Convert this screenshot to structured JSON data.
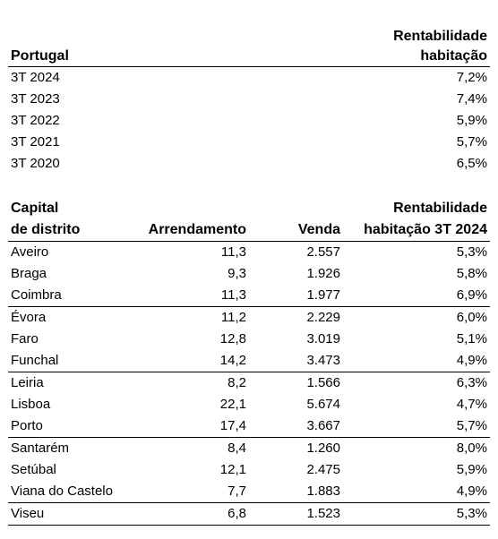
{
  "portugal": {
    "header_left": "Portugal",
    "header_right_line1": "Rentabilidade",
    "header_right_line2": "habitação",
    "rows": [
      {
        "period": "3T 2024",
        "value": "7,2%"
      },
      {
        "period": "3T 2023",
        "value": "7,4%"
      },
      {
        "period": "3T 2022",
        "value": "5,9%"
      },
      {
        "period": "3T 2021",
        "value": "5,7%"
      },
      {
        "period": "3T 2020",
        "value": "6,5%"
      }
    ]
  },
  "capitals": {
    "col1_line1": "Capital",
    "col1_line2": "de distrito",
    "col2": "Arrendamento",
    "col3": "Venda",
    "col4_line1": "Rentabilidade",
    "col4_line2": "habitação 3T 2024",
    "rows": [
      {
        "name": "Aveiro",
        "rent": "11,3",
        "sale": "2.557",
        "yield": "5,3%"
      },
      {
        "name": "Braga",
        "rent": "9,3",
        "sale": "1.926",
        "yield": "5,8%"
      },
      {
        "name": "Coimbra",
        "rent": "11,3",
        "sale": "1.977",
        "yield": "6,9%"
      },
      {
        "name": "Évora",
        "rent": "11,2",
        "sale": "2.229",
        "yield": "6,0%"
      },
      {
        "name": "Faro",
        "rent": "12,8",
        "sale": "3.019",
        "yield": "5,1%"
      },
      {
        "name": "Funchal",
        "rent": "14,2",
        "sale": "3.473",
        "yield": "4,9%"
      },
      {
        "name": "Leiria",
        "rent": "8,2",
        "sale": "1.566",
        "yield": "6,3%"
      },
      {
        "name": "Lisboa",
        "rent": "22,1",
        "sale": "5.674",
        "yield": "4,7%"
      },
      {
        "name": "Porto",
        "rent": "17,4",
        "sale": "3.667",
        "yield": "5,7%"
      },
      {
        "name": "Santarém",
        "rent": "8,4",
        "sale": "1.260",
        "yield": "8,0%"
      },
      {
        "name": "Setúbal",
        "rent": "12,1",
        "sale": "2.475",
        "yield": "5,9%"
      },
      {
        "name": "Viana do Castelo",
        "rent": "7,7",
        "sale": "1.883",
        "yield": "4,9%"
      },
      {
        "name": "Viseu",
        "rent": "6,8",
        "sale": "1.523",
        "yield": "5,3%"
      }
    ]
  }
}
